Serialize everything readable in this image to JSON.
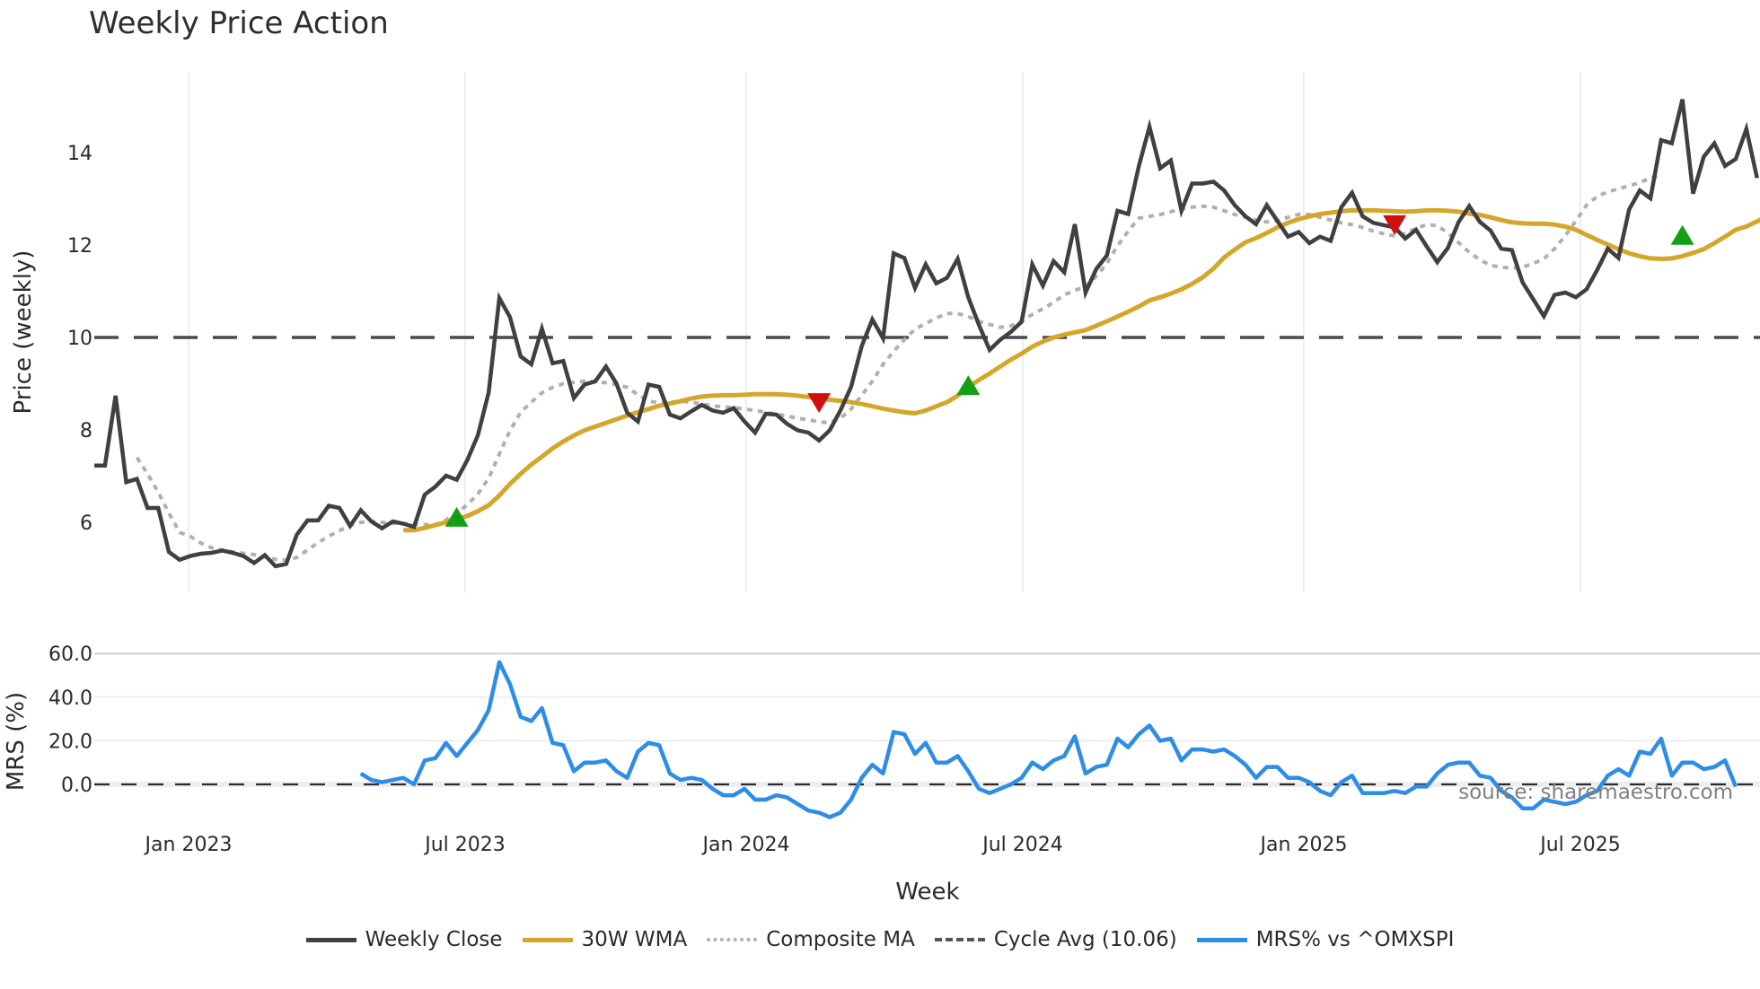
{
  "title": "Weekly Price Action",
  "watermark": "source: sharemaestro.com",
  "legend": [
    {
      "label": "Weekly Close",
      "color": "#404040",
      "style": "solid"
    },
    {
      "label": "30W WMA",
      "color": "#d4a62a",
      "style": "solid"
    },
    {
      "label": "Composite MA",
      "color": "#b0b0b0",
      "style": "dotted"
    },
    {
      "label": "Cycle Avg (10.06)",
      "color": "#555555",
      "style": "dashed"
    },
    {
      "label": "MRS% vs ^OMXSPI",
      "color": "#2e8de6",
      "style": "solid"
    }
  ],
  "colors": {
    "close": "#404040",
    "wma": "#d4a62a",
    "composite": "#b0b0b0",
    "cycle": "#4a4a4a",
    "mrs": "#2e8de6",
    "buy": "#14a014",
    "sell": "#d01010",
    "grid": "#e8eaee"
  },
  "chart_data": [
    {
      "type": "line",
      "title": "Weekly Price Action",
      "xlabel": "",
      "ylabel": "Price (weekly)",
      "yticks": [
        6,
        8,
        10,
        12,
        14
      ],
      "ylim": [
        4.6,
        15.9
      ],
      "xticks": [
        "Jan 2023",
        "Jul 2023",
        "Jan 2024",
        "Jul 2024",
        "Jan 2025",
        "Jul 2025"
      ],
      "x_start_week": "2022-10-24",
      "grid": "vertical",
      "cycle_avg": 10.06,
      "series": [
        {
          "name": "Weekly Close",
          "start_index": 0,
          "values": [
            7.23,
            7.23,
            8.74,
            6.87,
            6.94,
            6.31,
            6.31,
            5.36,
            5.19,
            5.27,
            5.32,
            5.34,
            5.39,
            5.34,
            5.27,
            5.12,
            5.29,
            5.05,
            5.1,
            5.73,
            6.04,
            6.04,
            6.36,
            6.31,
            5.92,
            6.26,
            6.02,
            5.87,
            6.02,
            5.97,
            5.9,
            6.6,
            6.77,
            7.01,
            6.92,
            7.35,
            7.89,
            8.81,
            10.85,
            10.44,
            9.59,
            9.42,
            10.19,
            9.44,
            9.49,
            8.69,
            8.98,
            9.05,
            9.37,
            9.0,
            8.37,
            8.18,
            8.98,
            8.93,
            8.33,
            8.25,
            8.4,
            8.54,
            8.42,
            8.37,
            8.47,
            8.18,
            7.94,
            8.35,
            8.33,
            8.13,
            7.99,
            7.94,
            7.77,
            7.99,
            8.42,
            8.93,
            9.81,
            10.39,
            9.98,
            11.82,
            11.72,
            11.07,
            11.58,
            11.17,
            11.29,
            11.7,
            10.87,
            10.27,
            9.73,
            9.95,
            10.12,
            10.34,
            11.58,
            11.12,
            11.65,
            11.41,
            12.45,
            10.97,
            11.48,
            11.77,
            12.74,
            12.67,
            13.71,
            14.56,
            13.66,
            13.83,
            12.74,
            13.33,
            13.33,
            13.37,
            13.18,
            12.86,
            12.62,
            12.45,
            12.86,
            12.52,
            12.18,
            12.28,
            12.04,
            12.18,
            12.09,
            12.82,
            13.13,
            12.62,
            12.48,
            12.43,
            12.38,
            12.14,
            12.33,
            11.97,
            11.63,
            11.94,
            12.5,
            12.84,
            12.5,
            12.31,
            11.92,
            11.89,
            11.19,
            10.83,
            10.46,
            10.92,
            10.97,
            10.87,
            11.04,
            11.46,
            11.92,
            11.72,
            12.77,
            13.18,
            13.01,
            14.27,
            14.2,
            15.15,
            13.11,
            13.91,
            14.2,
            13.71,
            13.86,
            14.51,
            13.45
          ]
        },
        {
          "name": "30W WMA",
          "start_index": 29,
          "values": [
            5.83,
            5.83,
            5.88,
            5.94,
            6.0,
            6.06,
            6.14,
            6.24,
            6.37,
            6.58,
            6.83,
            7.05,
            7.25,
            7.42,
            7.6,
            7.75,
            7.88,
            7.99,
            8.07,
            8.15,
            8.23,
            8.31,
            8.38,
            8.45,
            8.52,
            8.57,
            8.62,
            8.68,
            8.72,
            8.74,
            8.75,
            8.75,
            8.76,
            8.77,
            8.77,
            8.77,
            8.76,
            8.74,
            8.71,
            8.68,
            8.65,
            8.63,
            8.6,
            8.56,
            8.51,
            8.46,
            8.42,
            8.38,
            8.36,
            8.42,
            8.51,
            8.6,
            8.74,
            8.92,
            9.08,
            9.22,
            9.37,
            9.52,
            9.65,
            9.8,
            9.91,
            10.0,
            10.06,
            10.11,
            10.16,
            10.25,
            10.35,
            10.45,
            10.56,
            10.67,
            10.8,
            10.87,
            10.95,
            11.04,
            11.16,
            11.3,
            11.49,
            11.73,
            11.9,
            12.06,
            12.15,
            12.26,
            12.38,
            12.48,
            12.56,
            12.62,
            12.67,
            12.7,
            12.73,
            12.75,
            12.75,
            12.75,
            12.74,
            12.73,
            12.72,
            12.73,
            12.75,
            12.75,
            12.74,
            12.72,
            12.68,
            12.65,
            12.6,
            12.54,
            12.49,
            12.47,
            12.46,
            12.46,
            12.44,
            12.4,
            12.33,
            12.22,
            12.11,
            12.01,
            11.91,
            11.82,
            11.76,
            11.71,
            11.7,
            11.71,
            11.76,
            11.83,
            11.91,
            12.04,
            12.18,
            12.33,
            12.4,
            12.51,
            12.62,
            12.73,
            12.83,
            12.95,
            13.01
          ]
        },
        {
          "name": "Composite MA",
          "start_index": 4,
          "values": [
            7.4,
            7.05,
            6.65,
            6.2,
            5.78,
            5.7,
            5.55,
            5.45,
            5.4,
            5.36,
            5.33,
            5.3,
            5.25,
            5.2,
            5.18,
            5.24,
            5.4,
            5.56,
            5.7,
            5.82,
            5.93,
            6.0,
            6.02,
            6.0,
            5.98,
            5.97,
            5.96,
            5.95,
            5.95,
            6.05,
            6.2,
            6.38,
            6.62,
            6.95,
            7.48,
            7.98,
            8.38,
            8.6,
            8.8,
            8.92,
            9.0,
            9.03,
            9.05,
            9.04,
            9.02,
            8.98,
            8.92,
            8.76,
            8.63,
            8.58,
            8.6,
            8.62,
            8.6,
            8.56,
            8.52,
            8.5,
            8.48,
            8.45,
            8.42,
            8.38,
            8.34,
            8.3,
            8.25,
            8.22,
            8.17,
            8.16,
            8.25,
            8.45,
            8.75,
            9.05,
            9.42,
            9.7,
            9.95,
            10.18,
            10.3,
            10.42,
            10.52,
            10.52,
            10.45,
            10.35,
            10.28,
            10.22,
            10.25,
            10.35,
            10.5,
            10.62,
            10.76,
            10.92,
            11.02,
            11.1,
            11.32,
            11.6,
            11.98,
            12.3,
            12.58,
            12.62,
            12.66,
            12.72,
            12.78,
            12.82,
            12.84,
            12.82,
            12.74,
            12.66,
            12.6,
            12.54,
            12.5,
            12.52,
            12.6,
            12.66,
            12.66,
            12.6,
            12.54,
            12.48,
            12.44,
            12.38,
            12.3,
            12.24,
            12.2,
            12.25,
            12.36,
            12.44,
            12.42,
            12.26,
            12.05,
            11.84,
            11.68,
            11.56,
            11.52,
            11.5,
            11.52,
            11.6,
            11.7,
            11.92,
            12.2,
            12.52,
            12.86,
            13.05,
            13.15,
            13.22,
            13.28,
            13.35,
            13.45,
            13.5
          ]
        }
      ],
      "signals": [
        {
          "type": "buy",
          "week_index": 34,
          "value": 6.1
        },
        {
          "type": "sell",
          "week_index": 68,
          "value": 8.6
        },
        {
          "type": "buy",
          "week_index": 82,
          "value": 8.95
        },
        {
          "type": "sell",
          "week_index": 122,
          "value": 12.45
        },
        {
          "type": "buy",
          "week_index": 149,
          "value": 12.2
        }
      ]
    },
    {
      "type": "line",
      "title": "",
      "xlabel": "Week",
      "ylabel": "MRS (%)",
      "yticks": [
        0.0,
        20.0,
        40.0,
        60.0
      ],
      "ytick_labels": [
        "0.0",
        "20.0",
        "40.0",
        "60.0"
      ],
      "ylim": [
        -16,
        64
      ],
      "xticks": [
        "Jan 2023",
        "Jul 2023",
        "Jan 2024",
        "Jul 2024",
        "Jan 2025",
        "Jul 2025"
      ],
      "zero_line": "dashed",
      "series": [
        {
          "name": "MRS% vs ^OMXSPI",
          "start_index": 25,
          "values": [
            5,
            2,
            1,
            2,
            3,
            0,
            11,
            12,
            19,
            13,
            19,
            25,
            34,
            56,
            46,
            31,
            29,
            35,
            19,
            18,
            6,
            10,
            10,
            11,
            6,
            3,
            15,
            19,
            18,
            5,
            2,
            3,
            2,
            -2,
            -5,
            -5,
            -2,
            -7,
            -7,
            -5,
            -6,
            -9,
            -12,
            -13,
            -15,
            -13,
            -7,
            3,
            9,
            5,
            24,
            23,
            14,
            19,
            10,
            10,
            13,
            6,
            -2,
            -4,
            -2,
            0,
            3,
            10,
            7,
            11,
            13,
            22,
            5,
            8,
            9,
            21,
            17,
            23,
            27,
            20,
            21,
            11,
            16,
            16,
            15,
            16,
            13,
            9,
            3,
            8,
            8,
            3,
            3,
            1,
            -3,
            -5,
            1,
            4,
            -4,
            -4,
            -4,
            -3,
            -4,
            -1,
            -1,
            5,
            9,
            10,
            10,
            4,
            3,
            -3,
            -6,
            -11,
            -11,
            -7,
            -8,
            -9,
            -8,
            -5,
            -3,
            4,
            7,
            4,
            15,
            14,
            21,
            4,
            10,
            10,
            7,
            8,
            11,
            -1
          ]
        }
      ]
    }
  ],
  "axes": {
    "price_ylabel": "Price (weekly)",
    "mrs_ylabel": "MRS (%)",
    "xlabel": "Week",
    "price_ticks": [
      "6",
      "8",
      "10",
      "12",
      "14"
    ],
    "mrs_ticks": [
      "0.0",
      "20.0",
      "40.0",
      "60.0"
    ],
    "x_ticks": [
      "Jan 2023",
      "Jul 2023",
      "Jan 2024",
      "Jul 2024",
      "Jan 2025",
      "Jul 2025"
    ]
  }
}
